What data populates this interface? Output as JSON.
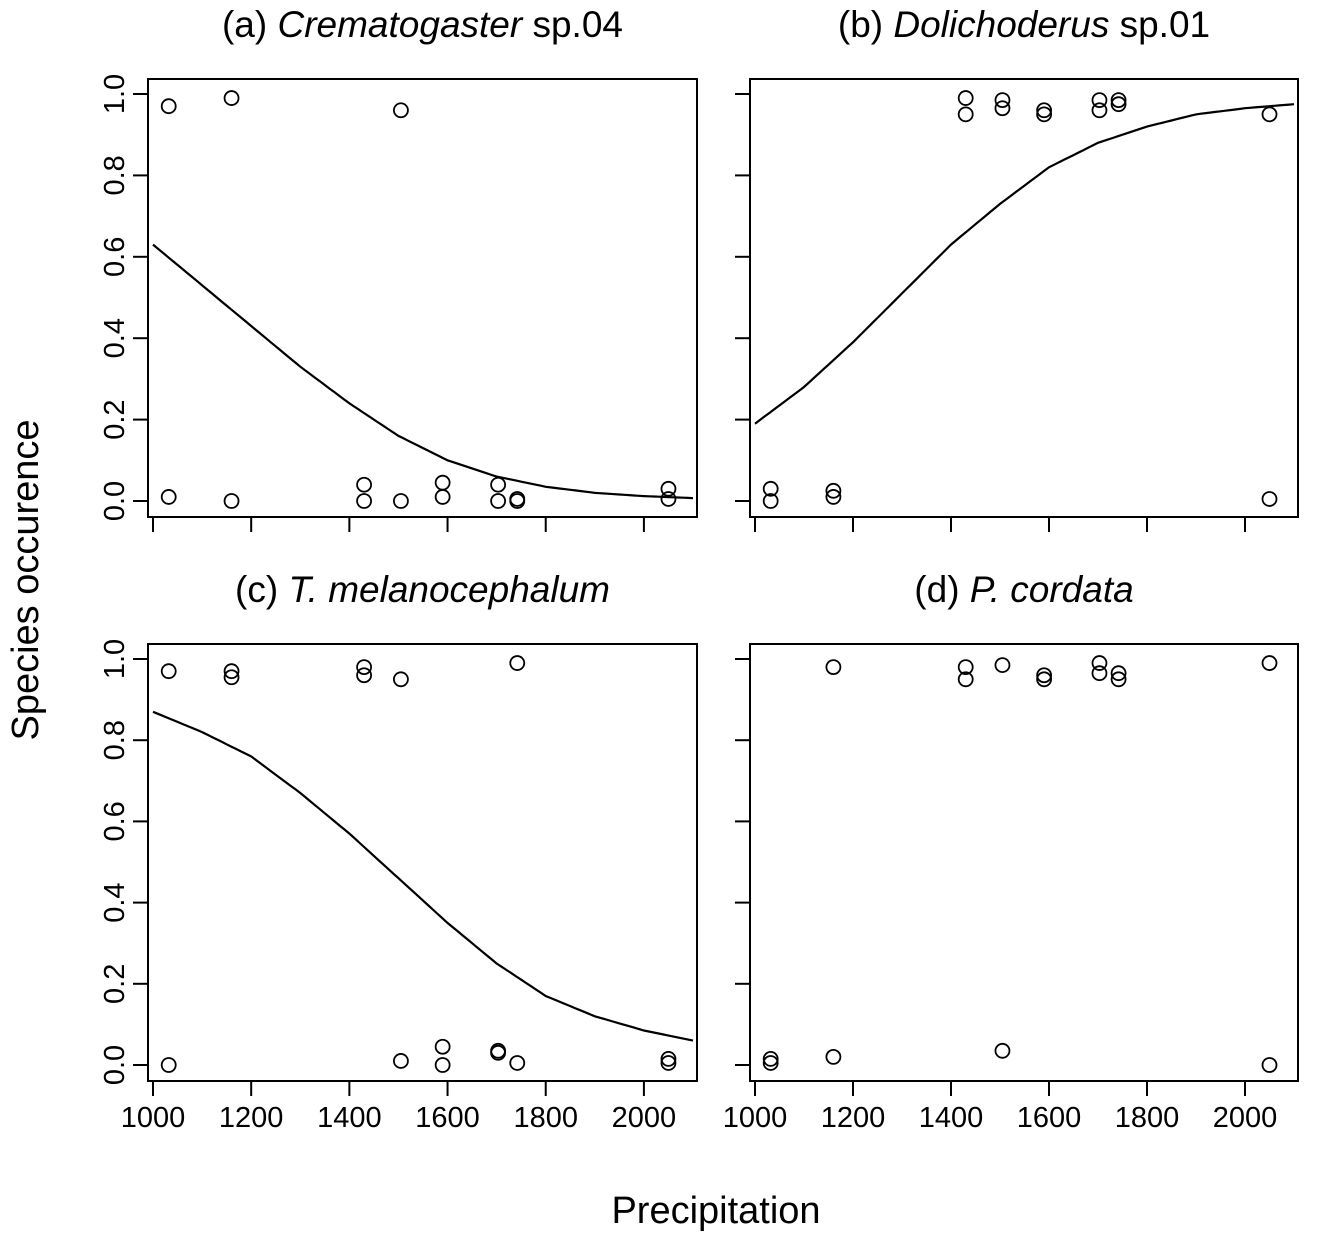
{
  "figure": {
    "ylabel": "Species occurence",
    "xlabel": "Precipitation"
  },
  "chart_data": [
    {
      "type": "scatter",
      "panel_label": "(a)",
      "title_italic": "Crematogaster",
      "title_suffix": "sp.04",
      "xlabel": "Precipitation",
      "ylabel": "Species occurence",
      "xlim": [
        1000,
        2100
      ],
      "ylim": [
        0,
        1
      ],
      "x_ticks": [
        1000,
        1200,
        1400,
        1600,
        1800,
        2000
      ],
      "y_ticks": [
        "0.0",
        "0.2",
        "0.4",
        "0.6",
        "0.8",
        "1.0"
      ],
      "show_x_tick_labels": false,
      "show_y_tick_labels": true,
      "points": [
        [
          1032,
          0.97
        ],
        [
          1160,
          0.99
        ],
        [
          1505,
          0.96
        ],
        [
          1032,
          0.01
        ],
        [
          1160,
          0.0
        ],
        [
          1430,
          0.04
        ],
        [
          1430,
          0.0
        ],
        [
          1505,
          0.0
        ],
        [
          1590,
          0.045
        ],
        [
          1590,
          0.01
        ],
        [
          1703,
          0.04
        ],
        [
          1703,
          0.0
        ],
        [
          1742,
          0.005
        ],
        [
          1742,
          0.0
        ],
        [
          2050,
          0.03
        ],
        [
          2050,
          0.005
        ]
      ],
      "fit_curve": {
        "model": "logistic",
        "x": [
          1000,
          1100,
          1200,
          1300,
          1400,
          1500,
          1600,
          1700,
          1800,
          1900,
          2000,
          2100
        ],
        "y": [
          0.63,
          0.53,
          0.43,
          0.33,
          0.24,
          0.16,
          0.1,
          0.06,
          0.035,
          0.02,
          0.012,
          0.007
        ]
      }
    },
    {
      "type": "scatter",
      "panel_label": "(b)",
      "title_italic": "Dolichoderus",
      "title_suffix": "sp.01",
      "xlabel": "Precipitation",
      "ylabel": "Species occurence",
      "xlim": [
        1000,
        2100
      ],
      "ylim": [
        0,
        1
      ],
      "x_ticks": [
        1000,
        1200,
        1400,
        1600,
        1800,
        2000
      ],
      "y_ticks": [
        "0.0",
        "0.2",
        "0.4",
        "0.6",
        "0.8",
        "1.0"
      ],
      "show_x_tick_labels": false,
      "show_y_tick_labels": false,
      "points": [
        [
          1032,
          0.03
        ],
        [
          1032,
          0.0
        ],
        [
          1160,
          0.025
        ],
        [
          1160,
          0.01
        ],
        [
          1430,
          0.99
        ],
        [
          1430,
          0.95
        ],
        [
          1505,
          0.985
        ],
        [
          1505,
          0.965
        ],
        [
          1590,
          0.96
        ],
        [
          1590,
          0.95
        ],
        [
          1703,
          0.985
        ],
        [
          1703,
          0.96
        ],
        [
          1742,
          0.985
        ],
        [
          1742,
          0.975
        ],
        [
          2050,
          0.95
        ],
        [
          2050,
          0.005
        ]
      ],
      "fit_curve": {
        "model": "logistic",
        "x": [
          1000,
          1100,
          1200,
          1300,
          1400,
          1500,
          1600,
          1700,
          1800,
          1900,
          2000,
          2100
        ],
        "y": [
          0.19,
          0.28,
          0.39,
          0.51,
          0.63,
          0.73,
          0.82,
          0.88,
          0.92,
          0.95,
          0.965,
          0.975
        ]
      }
    },
    {
      "type": "scatter",
      "panel_label": "(c)",
      "title_italic": "T. melanocephalum",
      "title_suffix": "",
      "xlabel": "Precipitation",
      "ylabel": "Species occurence",
      "xlim": [
        1000,
        2100
      ],
      "ylim": [
        0,
        1
      ],
      "x_ticks": [
        1000,
        1200,
        1400,
        1600,
        1800,
        2000
      ],
      "y_ticks": [
        "0.0",
        "0.2",
        "0.4",
        "0.6",
        "0.8",
        "1.0"
      ],
      "show_x_tick_labels": true,
      "show_y_tick_labels": true,
      "points": [
        [
          1032,
          0.97
        ],
        [
          1032,
          0.0
        ],
        [
          1160,
          0.97
        ],
        [
          1160,
          0.955
        ],
        [
          1430,
          0.98
        ],
        [
          1430,
          0.96
        ],
        [
          1505,
          0.95
        ],
        [
          1505,
          0.01
        ],
        [
          1590,
          0.045
        ],
        [
          1590,
          0.0
        ],
        [
          1703,
          0.035
        ],
        [
          1703,
          0.03
        ],
        [
          1742,
          0.99
        ],
        [
          1742,
          0.005
        ],
        [
          2050,
          0.015
        ],
        [
          2050,
          0.005
        ]
      ],
      "fit_curve": {
        "model": "logistic",
        "x": [
          1000,
          1100,
          1200,
          1300,
          1400,
          1500,
          1600,
          1700,
          1800,
          1900,
          2000,
          2100
        ],
        "y": [
          0.87,
          0.82,
          0.76,
          0.67,
          0.57,
          0.46,
          0.35,
          0.25,
          0.17,
          0.12,
          0.085,
          0.06
        ]
      }
    },
    {
      "type": "scatter",
      "panel_label": "(d)",
      "title_italic": "P. cordata",
      "title_suffix": "",
      "xlabel": "Precipitation",
      "ylabel": "Species occurence",
      "xlim": [
        1000,
        2100
      ],
      "ylim": [
        0,
        1
      ],
      "x_ticks": [
        1000,
        1200,
        1400,
        1600,
        1800,
        2000
      ],
      "y_ticks": [
        "0.0",
        "0.2",
        "0.4",
        "0.6",
        "0.8",
        "1.0"
      ],
      "show_x_tick_labels": true,
      "show_y_tick_labels": false,
      "points": [
        [
          1032,
          0.015
        ],
        [
          1032,
          0.005
        ],
        [
          1160,
          0.98
        ],
        [
          1160,
          0.02
        ],
        [
          1430,
          0.98
        ],
        [
          1430,
          0.95
        ],
        [
          1505,
          0.985
        ],
        [
          1505,
          0.035
        ],
        [
          1590,
          0.96
        ],
        [
          1590,
          0.95
        ],
        [
          1703,
          0.99
        ],
        [
          1703,
          0.965
        ],
        [
          1742,
          0.965
        ],
        [
          1742,
          0.95
        ],
        [
          2050,
          0.99
        ],
        [
          2050,
          0.0
        ]
      ],
      "fit_curve": null
    }
  ]
}
